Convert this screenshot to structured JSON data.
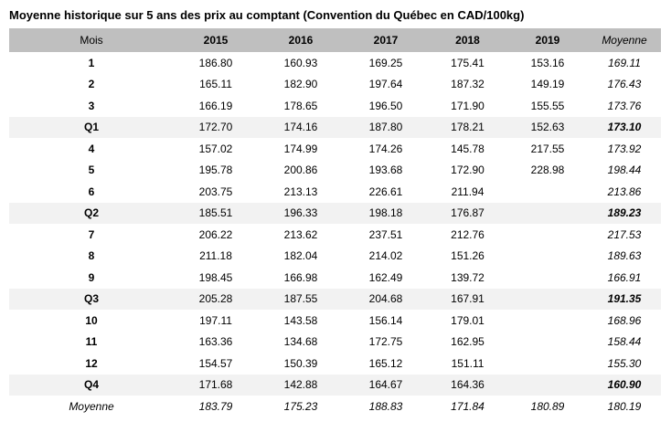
{
  "title": "Moyenne historique sur 5 ans des prix au comptant (Convention du Québec en CAD/100kg)",
  "colors": {
    "header_bg": "#bfbfbf",
    "quarter_row_bg": "#f2f2f2",
    "text": "#000000",
    "background": "#ffffff"
  },
  "table": {
    "columns": [
      "Mois",
      "2015",
      "2016",
      "2017",
      "2018",
      "2019",
      "Moyenne"
    ],
    "rows": [
      {
        "label": "1",
        "type": "month",
        "values": [
          "186.80",
          "160.93",
          "169.25",
          "175.41",
          "153.16",
          "169.11"
        ]
      },
      {
        "label": "2",
        "type": "month",
        "values": [
          "165.11",
          "182.90",
          "197.64",
          "187.32",
          "149.19",
          "176.43"
        ]
      },
      {
        "label": "3",
        "type": "month",
        "values": [
          "166.19",
          "178.65",
          "196.50",
          "171.90",
          "155.55",
          "173.76"
        ]
      },
      {
        "label": "Q1",
        "type": "quarter",
        "values": [
          "172.70",
          "174.16",
          "187.80",
          "178.21",
          "152.63",
          "173.10"
        ]
      },
      {
        "label": "4",
        "type": "month",
        "values": [
          "157.02",
          "174.99",
          "174.26",
          "145.78",
          "217.55",
          "173.92"
        ]
      },
      {
        "label": "5",
        "type": "month",
        "values": [
          "195.78",
          "200.86",
          "193.68",
          "172.90",
          "228.98",
          "198.44"
        ]
      },
      {
        "label": "6",
        "type": "month",
        "values": [
          "203.75",
          "213.13",
          "226.61",
          "211.94",
          "",
          "213.86"
        ]
      },
      {
        "label": "Q2",
        "type": "quarter",
        "values": [
          "185.51",
          "196.33",
          "198.18",
          "176.87",
          "",
          "189.23"
        ]
      },
      {
        "label": "7",
        "type": "month",
        "values": [
          "206.22",
          "213.62",
          "237.51",
          "212.76",
          "",
          "217.53"
        ]
      },
      {
        "label": "8",
        "type": "month",
        "values": [
          "211.18",
          "182.04",
          "214.02",
          "151.26",
          "",
          "189.63"
        ]
      },
      {
        "label": "9",
        "type": "month",
        "values": [
          "198.45",
          "166.98",
          "162.49",
          "139.72",
          "",
          "166.91"
        ]
      },
      {
        "label": "Q3",
        "type": "quarter",
        "values": [
          "205.28",
          "187.55",
          "204.68",
          "167.91",
          "",
          "191.35"
        ]
      },
      {
        "label": "10",
        "type": "month",
        "values": [
          "197.11",
          "143.58",
          "156.14",
          "179.01",
          "",
          "168.96"
        ]
      },
      {
        "label": "11",
        "type": "month",
        "values": [
          "163.36",
          "134.68",
          "172.75",
          "162.95",
          "",
          "158.44"
        ]
      },
      {
        "label": "12",
        "type": "month",
        "values": [
          "154.57",
          "150.39",
          "165.12",
          "151.11",
          "",
          "155.30"
        ]
      },
      {
        "label": "Q4",
        "type": "quarter",
        "values": [
          "171.68",
          "142.88",
          "164.67",
          "164.36",
          "",
          "160.90"
        ]
      },
      {
        "label": "Moyenne",
        "type": "total",
        "values": [
          "183.79",
          "175.23",
          "188.83",
          "171.84",
          "180.89",
          "180.19"
        ]
      }
    ]
  }
}
